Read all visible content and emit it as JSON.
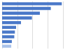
{
  "chart_data": {
    "type": "bar",
    "orientation": "horizontal",
    "categories": [
      null,
      null,
      null,
      null,
      null,
      null,
      null,
      null,
      null,
      null
    ],
    "values": [
      98,
      80,
      62,
      49,
      31,
      23,
      21,
      20,
      16,
      15
    ],
    "colors": [
      "#4a78c8",
      "#4a78c8",
      "#4a78c8",
      "#4a78c8",
      "#4a78c8",
      "#4a78c8",
      "#4a78c8",
      "#4a78c8",
      "#4a78c8",
      "#a9c2ea"
    ],
    "xlim": [
      0,
      100
    ],
    "xticks": [
      0,
      25,
      50,
      75,
      100
    ],
    "grid": true,
    "tick_labels": false
  }
}
